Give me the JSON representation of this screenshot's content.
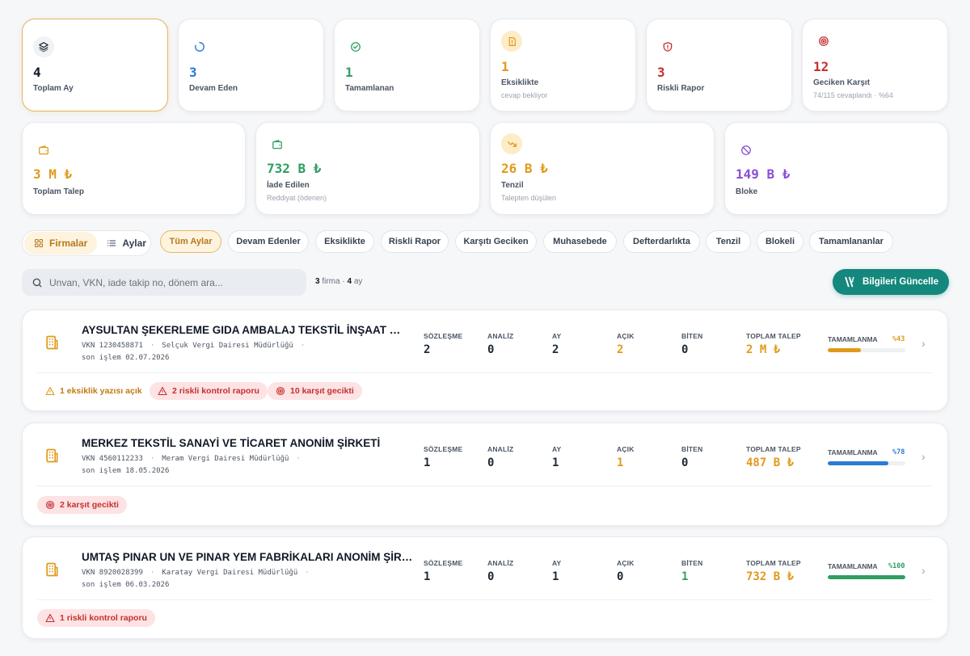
{
  "colors": {
    "gold": "#e09a1a",
    "blue": "#2b7bd1",
    "green": "#2f9e63",
    "red": "#c53030",
    "purple": "#8a4fd6",
    "teal": "#14887c"
  },
  "stats_row1": [
    {
      "value": "4",
      "label": "Toplam Ay",
      "sub": "",
      "icon": "layers-icon"
    },
    {
      "value": "3",
      "label": "Devam Eden",
      "sub": "",
      "icon": "loading-icon"
    },
    {
      "value": "1",
      "label": "Tamamlanan",
      "sub": "",
      "icon": "check-circle-icon"
    },
    {
      "value": "1",
      "label": "Eksiklikte",
      "sub": "cevap bekliyor",
      "icon": "document-alert-icon"
    },
    {
      "value": "3",
      "label": "Riskli Rapor",
      "sub": "",
      "icon": "shield-alert-icon"
    },
    {
      "value": "12",
      "label": "Geciken Karşıt",
      "sub": "74/115 cevaplandı · %64",
      "icon": "target-icon"
    }
  ],
  "stats_row2": [
    {
      "value": "3 M ₺",
      "label": "Toplam Talep",
      "sub": "",
      "icon": "wallet-icon"
    },
    {
      "value": "732 B ₺",
      "label": "İade Edilen",
      "sub": "Reddiyat (ödenen)",
      "icon": "wallet-icon"
    },
    {
      "value": "26 B ₺",
      "label": "Tenzil",
      "sub": "Talepten düşülen",
      "icon": "trend-down-icon"
    },
    {
      "value": "149 B ₺",
      "label": "Bloke",
      "sub": "",
      "icon": "ban-icon"
    }
  ],
  "view_toggle": {
    "firms": "Firmalar",
    "months": "Aylar"
  },
  "filters": [
    "Tüm Aylar",
    "Devam Edenler",
    "Eksiklikte",
    "Riskli Rapor",
    "Karşıtı Geciken",
    "Muhasebede",
    "Defterdarlıkta",
    "Tenzil",
    "Blokeli",
    "Tamamlananlar"
  ],
  "search": {
    "placeholder": "Unvan, VKN, iade takip no, dönem ara...",
    "count_firms": "3",
    "firm_word": "firma",
    "count_months": "4",
    "month_word": "ay"
  },
  "update_button": "Bilgileri Güncelle",
  "columns": {
    "contracts": "SÖZLEŞME",
    "analysis": "ANALİZ",
    "month": "AY",
    "open": "AÇIK",
    "done": "BİTEN",
    "total": "TOPLAM TALEP",
    "completion": "TAMAMLANMA"
  },
  "firms": [
    {
      "name": "AYSULTAN ŞEKERLEME GIDA AMBALAJ TEKSTİL İNŞAAT TURİZM SANAYİ VE TİCARET LİMİTED ŞİRKETİ",
      "vkn": "VKN 1230458871",
      "office": "Selçuk Vergi Dairesi Müdürlüğü",
      "last": "son işlem 02.07.2026",
      "contracts": "2",
      "analysis": "0",
      "month": "2",
      "open": "2",
      "done": "0",
      "total": "2 M ₺",
      "completion_text": "%43",
      "completion": 43,
      "badges": [
        {
          "type": "warn",
          "text": "1 eksiklik yazısı açık"
        },
        {
          "type": "risk",
          "text": "2 riskli kontrol raporu"
        },
        {
          "type": "risk",
          "text": "10 karşıt gecikti"
        }
      ]
    },
    {
      "name": "MERKEZ TEKSTİL SANAYİ VE TİCARET ANONİM ŞİRKETİ",
      "vkn": "VKN 4560112233",
      "office": "Meram Vergi Dairesi Müdürlüğü",
      "last": "son işlem 18.05.2026",
      "contracts": "1",
      "analysis": "0",
      "month": "1",
      "open": "1",
      "done": "0",
      "total": "487 B ₺",
      "completion_text": "%78",
      "completion": 78,
      "badges": [
        {
          "type": "risk",
          "text": "2 karşıt gecikti"
        }
      ]
    },
    {
      "name": "UMTAŞ PINAR UN VE PINAR YEM FABRİKALARI ANONİM ŞİRKETİ",
      "vkn": "VKN 8920028399",
      "office": "Karatay Vergi Dairesi Müdürlüğü",
      "last": "son işlem 06.03.2026",
      "contracts": "1",
      "analysis": "0",
      "month": "1",
      "open": "0",
      "done": "1",
      "total": "732 B ₺",
      "completion_text": "%100",
      "completion": 100,
      "badges": [
        {
          "type": "risk",
          "text": "1 riskli kontrol raporu"
        }
      ]
    }
  ]
}
